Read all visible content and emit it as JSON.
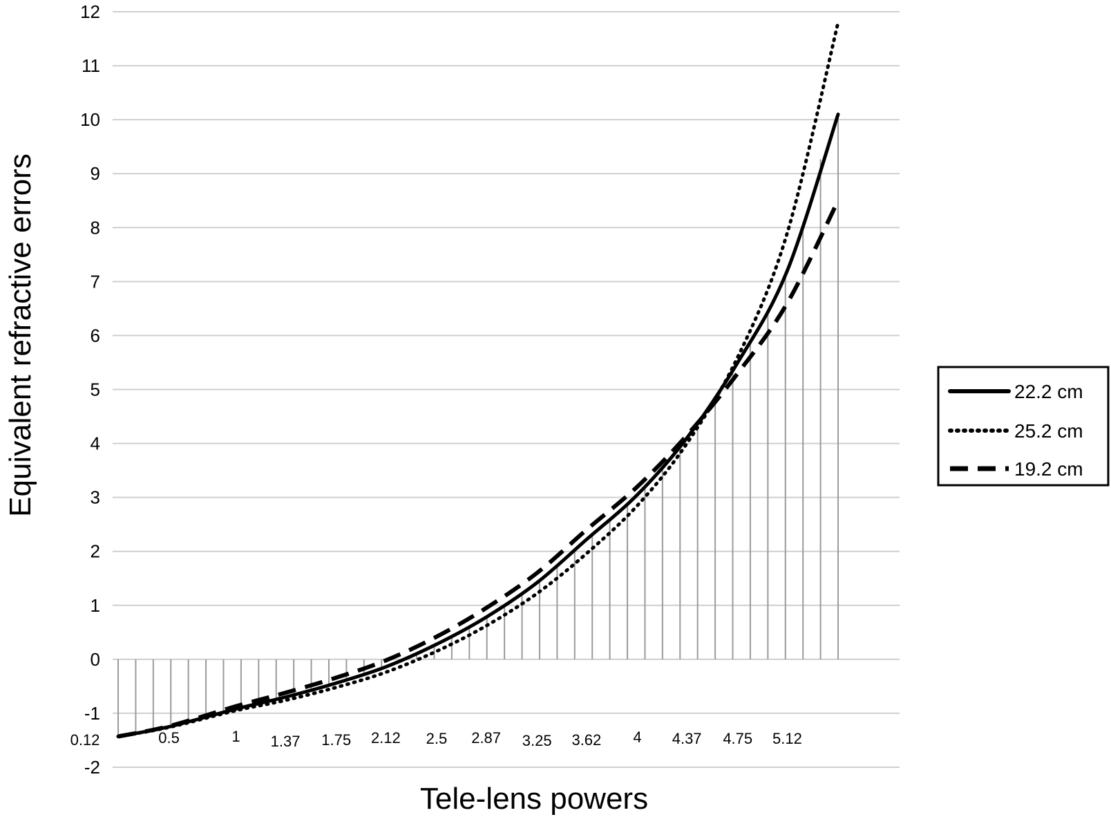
{
  "chart_data": {
    "type": "line",
    "xlabel": "Tele-lens powers",
    "ylabel": "Equivalent refractive errors",
    "ylim": [
      -2,
      12
    ],
    "yticks": [
      "12",
      "11",
      "10",
      "9",
      "8",
      "7",
      "6",
      "5",
      "4",
      "3",
      "2",
      "1",
      "0",
      "-1",
      "-2"
    ],
    "x_tick_labels": [
      "0.12",
      "0.5",
      "1",
      "1.37",
      "1.75",
      "2.12",
      "2.5",
      "2.87",
      "3.25",
      "3.62",
      "4",
      "4.37",
      "4.75",
      "5.12"
    ],
    "x_tick_values": [
      0.12,
      0.5,
      1,
      1.37,
      1.75,
      2.12,
      2.5,
      2.87,
      3.25,
      3.62,
      4,
      4.37,
      4.75,
      5.12
    ],
    "xlim": [
      0.12,
      5.5
    ],
    "grid": true,
    "legend_position": "right",
    "series": [
      {
        "name": "22.2 cm",
        "style": "solid",
        "color": "#000000",
        "x": [
          0.12,
          0.5,
          1,
          1.37,
          1.75,
          2.12,
          2.5,
          2.87,
          3.25,
          3.62,
          4,
          4.37,
          4.75,
          5.12,
          5.5
        ],
        "y": [
          -1.43,
          -1.25,
          -0.92,
          -0.7,
          -0.44,
          -0.14,
          0.28,
          0.78,
          1.42,
          2.22,
          3.05,
          4.1,
          5.5,
          7.2,
          10.1
        ]
      },
      {
        "name": "25.2 cm",
        "style": "dotted",
        "color": "#000000",
        "x": [
          0.12,
          0.5,
          1,
          1.37,
          1.75,
          2.12,
          2.5,
          2.87,
          3.25,
          3.62,
          4,
          4.37,
          4.75,
          5.12,
          5.5
        ],
        "y": [
          -1.43,
          -1.26,
          -0.95,
          -0.76,
          -0.52,
          -0.24,
          0.15,
          0.62,
          1.22,
          1.96,
          2.85,
          4.0,
          5.6,
          7.9,
          11.8
        ]
      },
      {
        "name": "19.2 cm",
        "style": "dashed",
        "color": "#000000",
        "x": [
          0.12,
          0.5,
          1,
          1.37,
          1.75,
          2.12,
          2.5,
          2.87,
          3.25,
          3.62,
          4,
          4.37,
          4.75,
          5.12,
          5.5
        ],
        "y": [
          -1.43,
          -1.24,
          -0.87,
          -0.62,
          -0.34,
          -0.02,
          0.42,
          0.95,
          1.6,
          2.4,
          3.2,
          4.15,
          5.3,
          6.6,
          8.5
        ]
      }
    ]
  }
}
